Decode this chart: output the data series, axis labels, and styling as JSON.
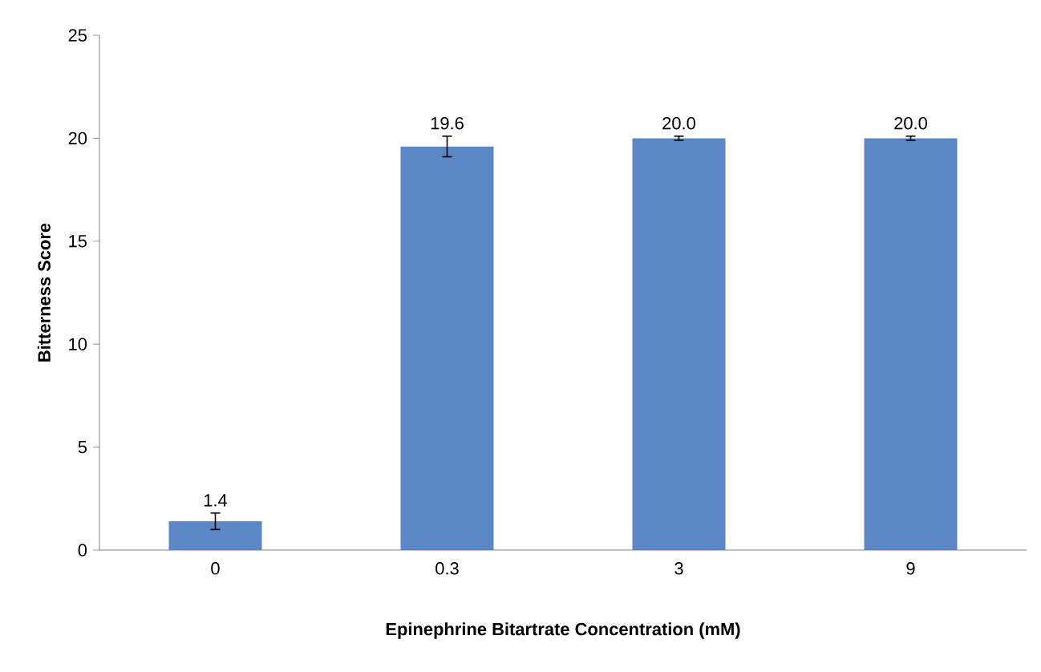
{
  "chart_data": {
    "type": "bar",
    "xlabel": "Epinephrine Bitartrate Concentration (mM)",
    "ylabel": "Bitterness Score",
    "categories": [
      "0",
      "0.3",
      "3",
      "9"
    ],
    "values": [
      1.4,
      19.6,
      20.0,
      20.0
    ],
    "errors": [
      0.4,
      0.5,
      0.1,
      0.1
    ],
    "value_labels": [
      "1.4",
      "19.6",
      "20.0",
      "20.0"
    ],
    "color": "#5b87c5",
    "ylim": [
      0,
      25
    ],
    "yticks": [
      0,
      5,
      10,
      15,
      20,
      25
    ]
  }
}
